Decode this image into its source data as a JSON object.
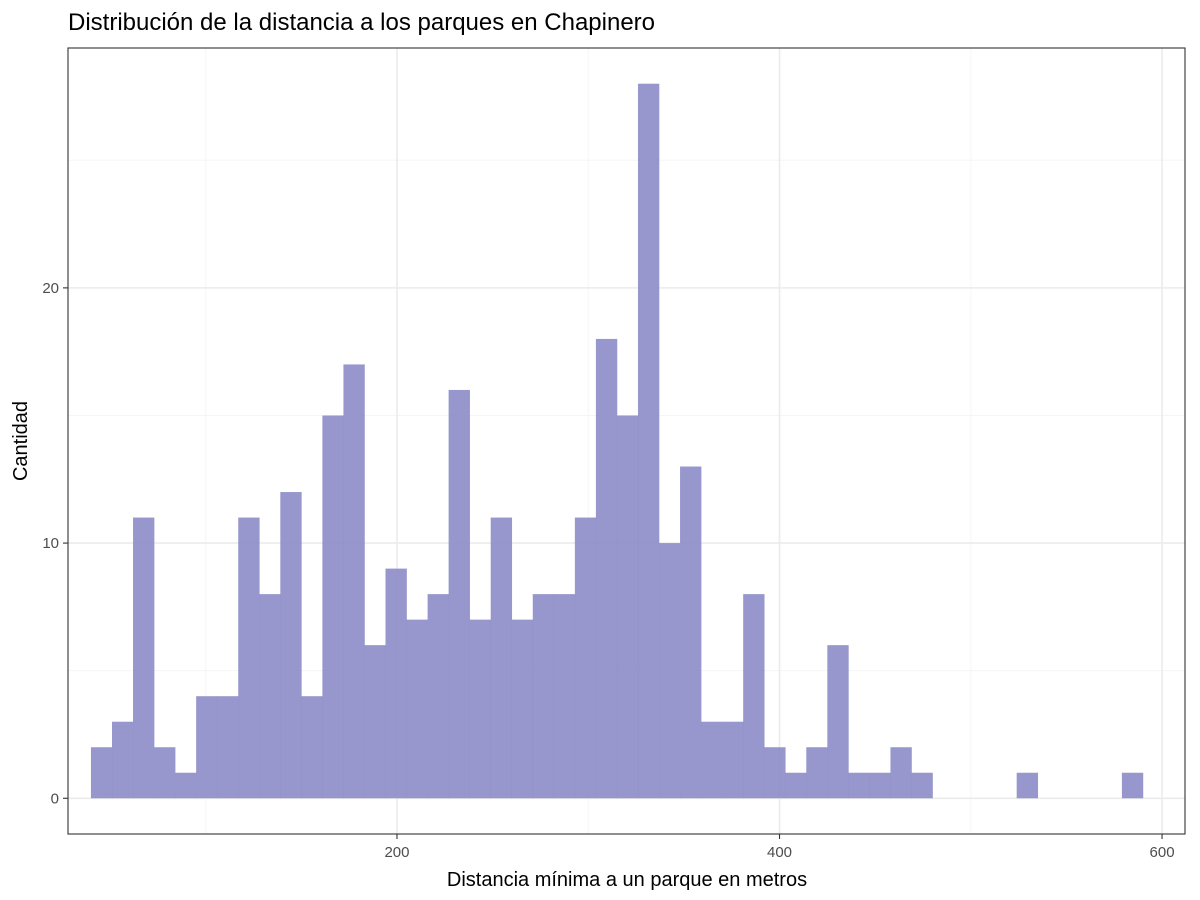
{
  "chart_data": {
    "type": "bar",
    "subtype": "histogram",
    "title": "Distribución de la distancia a los parques en Chapinero",
    "xlabel": "Distancia mínima a un parque en metros",
    "ylabel": "Cantidad",
    "xlim": [
      28,
      612
    ],
    "ylim": [
      -1.4,
      29.4
    ],
    "x_ticks": [
      200,
      400,
      600
    ],
    "y_ticks": [
      0,
      10,
      20
    ],
    "grid": true,
    "legend": "none",
    "bin_width": 11,
    "bins_start": 40,
    "counts": [
      2,
      3,
      11,
      2,
      1,
      4,
      4,
      11,
      8,
      12,
      4,
      15,
      17,
      6,
      9,
      7,
      8,
      16,
      7,
      11,
      7,
      8,
      8,
      11,
      18,
      15,
      28,
      10,
      13,
      3,
      3,
      8,
      2,
      1,
      2,
      6,
      1,
      1,
      2,
      1,
      0,
      0,
      0,
      0,
      1,
      0,
      0,
      0,
      0,
      1
    ],
    "colors": {
      "bar_fill": "#8c8cc8",
      "panel_border": "#333333",
      "grid_major": "#ebebeb",
      "grid_minor": "#f5f5f5"
    }
  }
}
